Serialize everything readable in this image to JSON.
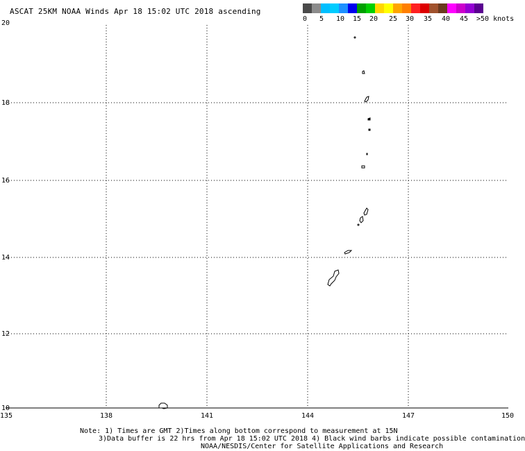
{
  "title": "ASCAT 25KM NOAA Winds Apr 18 15:02 UTC 2018 ascending",
  "color_scale": {
    "colors": [
      "#4a4a4a",
      "#8c8c8c",
      "#00bfff",
      "#00ccff",
      "#1e90ff",
      "#0000ee",
      "#00a000",
      "#00d000",
      "#ffd700",
      "#ffff00",
      "#ffa500",
      "#ff7f00",
      "#ff2020",
      "#dd0000",
      "#a0522d",
      "#6b3a1f",
      "#ff00ff",
      "#cc00cc",
      "#9400d3",
      "#5a0090"
    ],
    "labels": [
      "0",
      "5",
      "10",
      "15",
      "20",
      "25",
      "30",
      "35",
      "40",
      "45",
      ">50 knots"
    ]
  },
  "axes": {
    "lon_ticks": [
      "135",
      "138",
      "141",
      "144",
      "147",
      "150"
    ],
    "lat_ticks": [
      "20",
      "18",
      "16",
      "14",
      "12",
      "10"
    ]
  },
  "notes": {
    "line1": "Note: 1) Times are GMT 2)Times along bottom correspond to measurement at 15N",
    "line2": "3)Data buffer is 22 hrs from Apr 18 15:02 UTC 2018 4) Black wind barbs indicate possible contamination",
    "line3": "NOAA/NESDIS/Center for Satellite Applications and Research"
  }
}
